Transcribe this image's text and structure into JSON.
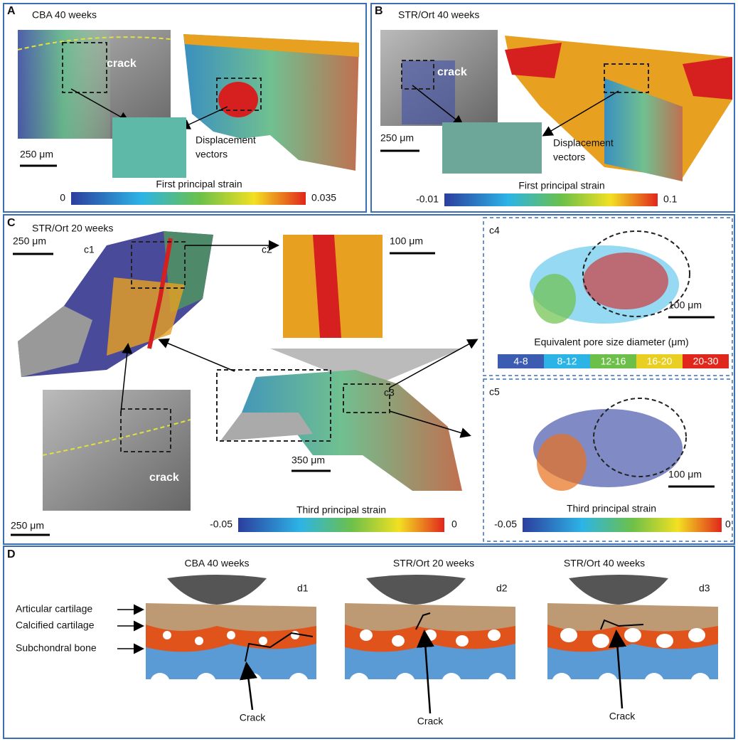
{
  "panel_a": {
    "label": "A",
    "title": "CBA 40 weeks",
    "crack": "crack",
    "scale": "250 μm",
    "vectors": [
      "Displacement",
      "vectors"
    ],
    "colorbar": {
      "title": "First principal strain",
      "min": "0",
      "max": "0.035"
    }
  },
  "panel_b": {
    "label": "B",
    "title": "STR/Ort 40 weeks",
    "crack": "crack",
    "scale": "250 μm",
    "vectors": [
      "Displacement",
      "vectors"
    ],
    "colorbar": {
      "title": "First principal strain",
      "min": "-0.01",
      "max": "0.1"
    }
  },
  "panel_c": {
    "label": "C",
    "title": "STR/Ort 20 weeks",
    "c1": "c1",
    "c1_scale": "250 μm",
    "c2": "c2",
    "c2_scale": "100 μm",
    "crack": "crack",
    "sem_scale": "250 μm",
    "c3": "c3",
    "c3_scale": "350 μm",
    "colorbar": {
      "title": "Third principal strain",
      "min": "-0.05",
      "max": "0"
    },
    "c4": {
      "label": "c4",
      "scale": "100 μm",
      "legend_title": "Equivalent pore size diameter (μm)",
      "legend": [
        "4-8",
        "8-12",
        "12-16",
        "16-20",
        "20-30"
      ]
    },
    "c5": {
      "label": "c5",
      "scale": "100 μm",
      "colorbar": {
        "title": "Third principal strain",
        "min": "-0.05",
        "max": "0"
      }
    }
  },
  "panel_d": {
    "label": "D",
    "layers": [
      "Articular cartilage",
      "Calcified cartilage",
      "Subchondral bone"
    ],
    "sketches": [
      {
        "title": "CBA 40 weeks",
        "label": "d1",
        "crack": "Crack"
      },
      {
        "title": "STR/Ort 20 weeks",
        "label": "d2",
        "crack": "Crack"
      },
      {
        "title": "STR/Ort 40 weeks",
        "label": "d3",
        "crack": "Crack"
      }
    ]
  }
}
